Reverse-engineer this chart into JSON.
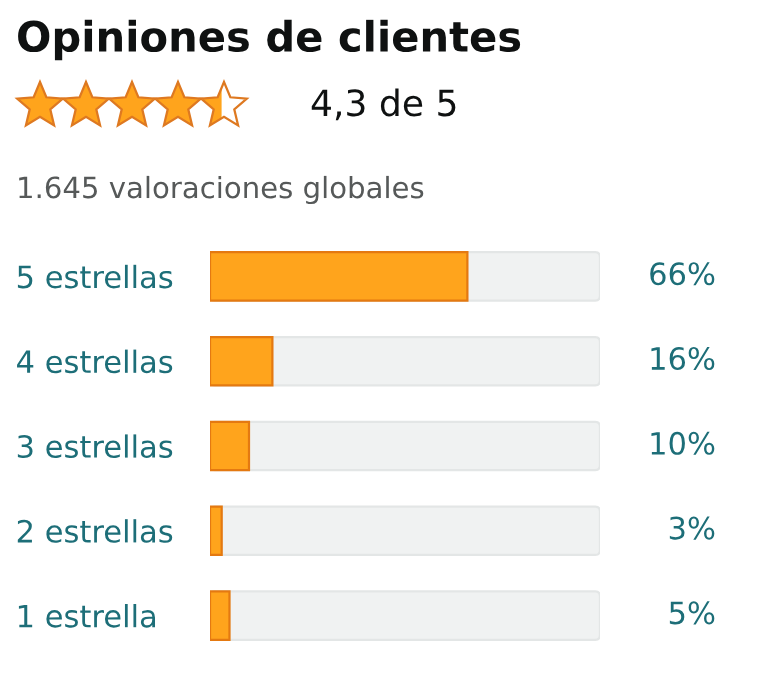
{
  "chart_data": {
    "type": "bar",
    "orientation": "horizontal",
    "title": "Opiniones de clientes",
    "subtitle": "4,3 de 5",
    "annotations": [
      "1.645 valoraciones globales"
    ],
    "categories": [
      "5 estrellas",
      "4 estrellas",
      "3 estrellas",
      "2 estrellas",
      "1 estrella"
    ],
    "values": [
      66,
      16,
      10,
      3,
      5
    ],
    "value_labels": [
      "66%",
      "16%",
      "10%",
      "3%",
      "5%"
    ],
    "color": "#ffa41c",
    "xlim": [
      0,
      100
    ],
    "tick_labels": "y",
    "grid": false,
    "legend": false
  }
}
